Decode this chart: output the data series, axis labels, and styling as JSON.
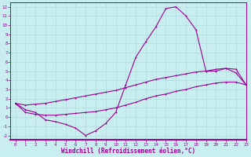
{
  "xlabel": "Windchill (Refroidissement éolien,°C)",
  "xlim": [
    -0.5,
    23
  ],
  "ylim": [
    -2.5,
    12.5
  ],
  "xticks": [
    0,
    1,
    2,
    3,
    4,
    5,
    6,
    7,
    8,
    9,
    10,
    11,
    12,
    13,
    14,
    15,
    16,
    17,
    18,
    19,
    20,
    21,
    22,
    23
  ],
  "yticks": [
    -2,
    -1,
    0,
    1,
    2,
    3,
    4,
    5,
    6,
    7,
    8,
    9,
    10,
    11,
    12
  ],
  "line_color": "#990099",
  "bg_color": "#c8eef0",
  "grid_color": "#b0dcdc",
  "line1_x": [
    0,
    1,
    2,
    3,
    4,
    5,
    6,
    7,
    8,
    9,
    10,
    11,
    12,
    13,
    14,
    15,
    16,
    17,
    18,
    19,
    20,
    21,
    22,
    23
  ],
  "line1_y": [
    1.5,
    0.8,
    0.5,
    -0.3,
    -0.5,
    -0.8,
    -1.2,
    -2.0,
    -1.5,
    -0.7,
    0.5,
    3.5,
    6.5,
    8.2,
    9.8,
    11.8,
    12.0,
    11.0,
    9.5,
    5.0,
    5.0,
    5.3,
    4.8,
    3.5
  ],
  "line2_x": [
    0,
    1,
    2,
    3,
    4,
    5,
    6,
    7,
    8,
    9,
    10,
    11,
    12,
    13,
    14,
    15,
    16,
    17,
    18,
    19,
    20,
    21,
    22,
    23
  ],
  "line2_y": [
    1.5,
    1.3,
    1.4,
    1.5,
    1.7,
    1.9,
    2.1,
    2.3,
    2.5,
    2.7,
    2.9,
    3.2,
    3.5,
    3.8,
    4.1,
    4.3,
    4.5,
    4.7,
    4.9,
    5.0,
    5.2,
    5.3,
    5.2,
    3.5
  ],
  "line3_x": [
    0,
    1,
    2,
    3,
    4,
    5,
    6,
    7,
    8,
    9,
    10,
    11,
    12,
    13,
    14,
    15,
    16,
    17,
    18,
    19,
    20,
    21,
    22,
    23
  ],
  "line3_y": [
    1.5,
    0.5,
    0.3,
    0.2,
    0.2,
    0.3,
    0.4,
    0.5,
    0.6,
    0.8,
    1.0,
    1.3,
    1.6,
    2.0,
    2.3,
    2.5,
    2.8,
    3.0,
    3.3,
    3.5,
    3.7,
    3.8,
    3.8,
    3.5
  ]
}
